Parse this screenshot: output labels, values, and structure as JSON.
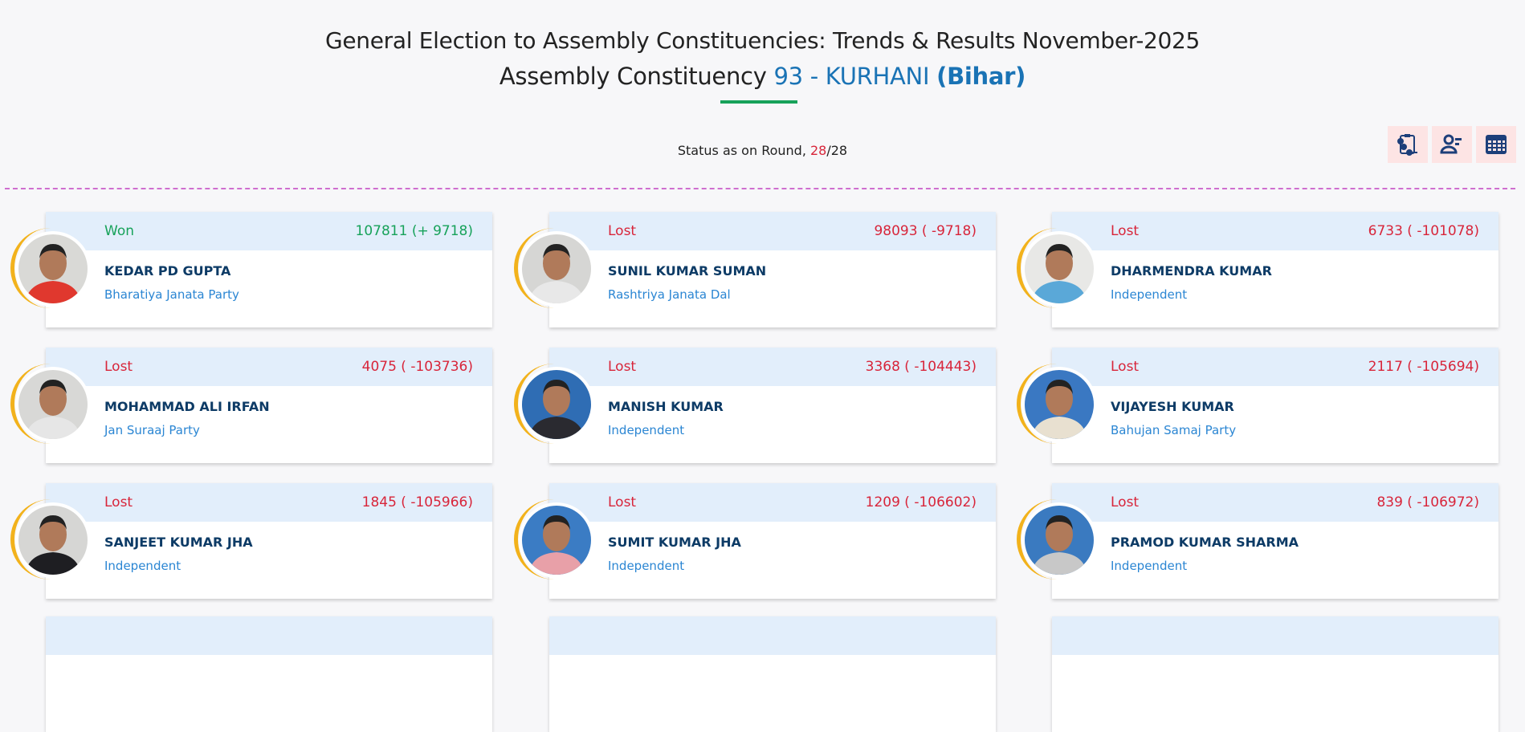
{
  "header": {
    "title": "General Election to Assembly Constituencies: Trends & Results November-2025",
    "ac_prefix": "Assembly Constituency",
    "ac_name": "93 - KURHANI",
    "state": "(Bihar)"
  },
  "status": {
    "label": "Status as on Round,",
    "current": "28",
    "sep": "/",
    "total": "28"
  },
  "icons": [
    "clipboard-list-icon",
    "user-list-icon",
    "table-grid-icon"
  ],
  "colors": {
    "won": "#17a25a",
    "lost": "#d8253a",
    "accent": "#1a73b5",
    "ring": "#f2b21c"
  },
  "candidates": [
    {
      "status": "Won",
      "votes": "107811 (+ 9718)",
      "name": "KEDAR PD GUPTA",
      "party": "Bharatiya Janata Party",
      "bg": "#d9d9d6",
      "shirt": "#e0382e"
    },
    {
      "status": "Lost",
      "votes": "98093 ( -9718)",
      "name": "SUNIL KUMAR SUMAN",
      "party": "Rashtriya Janata Dal",
      "bg": "#d6d6d4",
      "shirt": "#e8e8e8"
    },
    {
      "status": "Lost",
      "votes": "6733 ( -101078)",
      "name": "DHARMENDRA KUMAR",
      "party": "Independent",
      "bg": "#e8e8e6",
      "shirt": "#5aa8d8"
    },
    {
      "status": "Lost",
      "votes": "4075 ( -103736)",
      "name": "MOHAMMAD ALI IRFAN",
      "party": "Jan Suraaj Party",
      "bg": "#d8d8d6",
      "shirt": "#e6e6e6"
    },
    {
      "status": "Lost",
      "votes": "3368 ( -104443)",
      "name": "MANISH KUMAR",
      "party": "Independent",
      "bg": "#2f6db4",
      "shirt": "#2a2a30"
    },
    {
      "status": "Lost",
      "votes": "2117 ( -105694)",
      "name": "VIJAYESH KUMAR",
      "party": "Bahujan Samaj Party",
      "bg": "#3a78c2",
      "shirt": "#e8e0d0"
    },
    {
      "status": "Lost",
      "votes": "1845 ( -105966)",
      "name": "SANJEET KUMAR JHA",
      "party": "Independent",
      "bg": "#d6d6d4",
      "shirt": "#1e1e22"
    },
    {
      "status": "Lost",
      "votes": "1209 ( -106602)",
      "name": "SUMIT KUMAR JHA",
      "party": "Independent",
      "bg": "#3b7cc4",
      "shirt": "#e8a0a8"
    },
    {
      "status": "Lost",
      "votes": "839 ( -106972)",
      "name": "PRAMOD KUMAR SHARMA",
      "party": "Independent",
      "bg": "#3a7ac0",
      "shirt": "#c8c8c8"
    }
  ]
}
